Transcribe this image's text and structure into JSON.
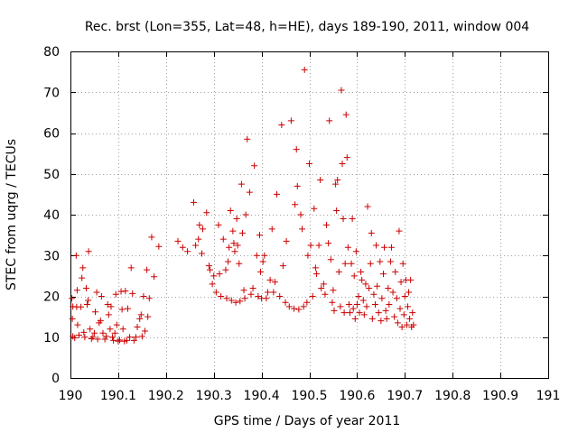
{
  "chart_data": {
    "type": "scatter",
    "title": "Rec. brst (Lon=355, Lat=48, h=HE), days 189-190, 2011, window 004",
    "xlabel": "GPS time / Days of year 2011",
    "ylabel": "STEC from uqrg / TECUs",
    "xlim": [
      190,
      191
    ],
    "ylim": [
      0,
      80
    ],
    "xticks": [
      190,
      190.1,
      190.2,
      190.3,
      190.4,
      190.5,
      190.6,
      190.7,
      190.8,
      190.9,
      191
    ],
    "xtick_labels": [
      "190",
      "190.1",
      "190.2",
      "190.3",
      "190.4",
      "190.5",
      "190.6",
      "190.7",
      "190.8",
      "190.9",
      "191"
    ],
    "yticks": [
      0,
      10,
      20,
      30,
      40,
      50,
      60,
      70,
      80
    ],
    "ytick_labels": [
      "0",
      "10",
      "20",
      "30",
      "40",
      "50",
      "60",
      "70",
      "80"
    ],
    "grid": true,
    "marker": "+",
    "color": "#cc0000",
    "series": [
      {
        "name": "STEC",
        "points": [
          [
            190.003,
            19.5
          ],
          [
            190.004,
            14.5
          ],
          [
            190.005,
            17.5
          ],
          [
            190.005,
            10.2
          ],
          [
            190.009,
            9.8
          ],
          [
            190.012,
            30.0
          ],
          [
            190.013,
            17.4
          ],
          [
            190.014,
            21.5
          ],
          [
            190.015,
            13.0
          ],
          [
            190.018,
            10.5
          ],
          [
            190.022,
            17.4
          ],
          [
            190.024,
            24.5
          ],
          [
            190.026,
            27.0
          ],
          [
            190.028,
            11.2
          ],
          [
            190.03,
            10.0
          ],
          [
            190.033,
            22.0
          ],
          [
            190.035,
            18.0
          ],
          [
            190.037,
            19.0
          ],
          [
            190.038,
            31.0
          ],
          [
            190.041,
            12.0
          ],
          [
            190.044,
            9.6
          ],
          [
            190.047,
            10.0
          ],
          [
            190.05,
            11.0
          ],
          [
            190.052,
            16.2
          ],
          [
            190.055,
            21.0
          ],
          [
            190.057,
            9.5
          ],
          [
            190.06,
            13.5
          ],
          [
            190.063,
            14.0
          ],
          [
            190.065,
            20.0
          ],
          [
            190.068,
            11.0
          ],
          [
            190.072,
            9.5
          ],
          [
            190.075,
            10.2
          ],
          [
            190.078,
            18.0
          ],
          [
            190.08,
            15.5
          ],
          [
            190.083,
            12.0
          ],
          [
            190.085,
            17.5
          ],
          [
            190.088,
            10.0
          ],
          [
            190.09,
            9.2
          ],
          [
            190.093,
            11.0
          ],
          [
            190.095,
            20.5
          ],
          [
            190.097,
            13.0
          ],
          [
            190.1,
            9.0
          ],
          [
            190.103,
            9.3
          ],
          [
            190.106,
            21.2
          ],
          [
            190.108,
            16.8
          ],
          [
            190.11,
            12.0
          ],
          [
            190.113,
            9.0
          ],
          [
            190.115,
            21.3
          ],
          [
            190.118,
            9.2
          ],
          [
            190.12,
            17.0
          ],
          [
            190.124,
            10.0
          ],
          [
            190.127,
            27.0
          ],
          [
            190.13,
            20.7
          ],
          [
            190.133,
            9.2
          ],
          [
            190.137,
            10.0
          ],
          [
            190.14,
            12.5
          ],
          [
            190.145,
            14.5
          ],
          [
            190.148,
            15.5
          ],
          [
            190.15,
            10.2
          ],
          [
            190.153,
            20.0
          ],
          [
            190.156,
            11.5
          ],
          [
            190.16,
            26.5
          ],
          [
            190.162,
            15.0
          ],
          [
            190.165,
            19.5
          ],
          [
            190.17,
            34.5
          ],
          [
            190.175,
            24.8
          ],
          [
            190.185,
            32.2
          ],
          [
            190.225,
            33.5
          ],
          [
            190.235,
            32.0
          ],
          [
            190.245,
            31.0
          ],
          [
            190.258,
            43.0
          ],
          [
            190.262,
            32.5
          ],
          [
            190.268,
            34.0
          ],
          [
            190.27,
            37.5
          ],
          [
            190.275,
            30.5
          ],
          [
            190.277,
            36.5
          ],
          [
            190.285,
            40.5
          ],
          [
            190.29,
            27.5
          ],
          [
            190.292,
            26.5
          ],
          [
            190.297,
            23.0
          ],
          [
            190.3,
            25.0
          ],
          [
            190.305,
            21.0
          ],
          [
            190.31,
            37.5
          ],
          [
            190.312,
            25.5
          ],
          [
            190.315,
            20.0
          ],
          [
            190.32,
            34.0
          ],
          [
            190.325,
            26.5
          ],
          [
            190.327,
            19.5
          ],
          [
            190.33,
            28.5
          ],
          [
            190.332,
            32.0
          ],
          [
            190.335,
            41.0
          ],
          [
            190.337,
            19.0
          ],
          [
            190.34,
            36.0
          ],
          [
            190.342,
            33.0
          ],
          [
            190.344,
            31.0
          ],
          [
            190.346,
            18.5
          ],
          [
            190.348,
            39.0
          ],
          [
            190.35,
            32.5
          ],
          [
            190.353,
            28.0
          ],
          [
            190.355,
            18.8
          ],
          [
            190.358,
            47.5
          ],
          [
            190.36,
            35.5
          ],
          [
            190.363,
            21.5
          ],
          [
            190.365,
            19.5
          ],
          [
            190.367,
            40.0
          ],
          [
            190.37,
            58.5
          ],
          [
            190.375,
            45.5
          ],
          [
            190.378,
            20.5
          ],
          [
            190.382,
            22.0
          ],
          [
            190.385,
            52.0
          ],
          [
            190.39,
            30.0
          ],
          [
            190.393,
            20.0
          ],
          [
            190.396,
            35.0
          ],
          [
            190.398,
            26.0
          ],
          [
            190.4,
            19.5
          ],
          [
            190.403,
            28.5
          ],
          [
            190.406,
            30.0
          ],
          [
            190.41,
            19.5
          ],
          [
            190.413,
            21.0
          ],
          [
            190.418,
            24.0
          ],
          [
            190.422,
            36.5
          ],
          [
            190.425,
            21.0
          ],
          [
            190.428,
            23.5
          ],
          [
            190.432,
            45.0
          ],
          [
            190.438,
            20.0
          ],
          [
            190.442,
            62.0
          ],
          [
            190.445,
            27.5
          ],
          [
            190.45,
            18.5
          ],
          [
            190.452,
            33.5
          ],
          [
            190.458,
            17.5
          ],
          [
            190.462,
            63.0
          ],
          [
            190.468,
            17.0
          ],
          [
            190.47,
            42.5
          ],
          [
            190.473,
            56.0
          ],
          [
            190.475,
            47.0
          ],
          [
            190.478,
            16.8
          ],
          [
            190.482,
            40.0
          ],
          [
            190.485,
            36.5
          ],
          [
            190.488,
            17.5
          ],
          [
            190.49,
            75.5
          ],
          [
            190.495,
            18.5
          ],
          [
            190.497,
            30.0
          ],
          [
            190.5,
            52.5
          ],
          [
            190.503,
            32.5
          ],
          [
            190.507,
            20.0
          ],
          [
            190.51,
            41.5
          ],
          [
            190.513,
            27.0
          ],
          [
            190.515,
            25.5
          ],
          [
            190.52,
            32.5
          ],
          [
            190.523,
            48.5
          ],
          [
            190.525,
            22.0
          ],
          [
            190.53,
            23.0
          ],
          [
            190.533,
            20.5
          ],
          [
            190.536,
            37.5
          ],
          [
            190.54,
            33.0
          ],
          [
            190.542,
            63.0
          ],
          [
            190.545,
            29.0
          ],
          [
            190.548,
            18.5
          ],
          [
            190.55,
            21.5
          ],
          [
            190.552,
            16.5
          ],
          [
            190.555,
            47.5
          ],
          [
            190.557,
            41.0
          ],
          [
            190.559,
            48.5
          ],
          [
            190.562,
            26.0
          ],
          [
            190.565,
            17.5
          ],
          [
            190.567,
            70.5
          ],
          [
            190.569,
            52.5
          ],
          [
            190.571,
            39.0
          ],
          [
            190.573,
            16.0
          ],
          [
            190.575,
            28.0
          ],
          [
            190.577,
            64.5
          ],
          [
            190.579,
            54.0
          ],
          [
            190.581,
            32.0
          ],
          [
            190.583,
            18.0
          ],
          [
            190.585,
            16.0
          ],
          [
            190.588,
            28.0
          ],
          [
            190.59,
            39.0
          ],
          [
            190.592,
            17.0
          ],
          [
            190.594,
            25.0
          ],
          [
            190.596,
            14.5
          ],
          [
            190.598,
            31.0
          ],
          [
            190.6,
            18.0
          ],
          [
            190.603,
            20.0
          ],
          [
            190.605,
            16.0
          ],
          [
            190.608,
            26.0
          ],
          [
            190.61,
            24.0
          ],
          [
            190.613,
            19.0
          ],
          [
            190.615,
            15.5
          ],
          [
            190.618,
            23.0
          ],
          [
            190.62,
            17.5
          ],
          [
            190.622,
            42.0
          ],
          [
            190.625,
            22.0
          ],
          [
            190.628,
            28.0
          ],
          [
            190.63,
            35.5
          ],
          [
            190.632,
            14.5
          ],
          [
            190.635,
            20.5
          ],
          [
            190.638,
            18.0
          ],
          [
            190.64,
            32.5
          ],
          [
            190.642,
            22.5
          ],
          [
            190.645,
            16.0
          ],
          [
            190.648,
            28.5
          ],
          [
            190.65,
            14.0
          ],
          [
            190.652,
            19.5
          ],
          [
            190.655,
            25.5
          ],
          [
            190.657,
            32.0
          ],
          [
            190.66,
            16.5
          ],
          [
            190.662,
            14.5
          ],
          [
            190.665,
            22.0
          ],
          [
            190.667,
            18.0
          ],
          [
            190.67,
            28.5
          ],
          [
            190.672,
            32.0
          ],
          [
            190.675,
            21.0
          ],
          [
            190.678,
            15.0
          ],
          [
            190.68,
            26.0
          ],
          [
            190.683,
            19.5
          ],
          [
            190.685,
            13.5
          ],
          [
            190.688,
            36.0
          ],
          [
            190.69,
            17.0
          ],
          [
            190.692,
            23.5
          ],
          [
            190.694,
            12.5
          ],
          [
            190.696,
            28.0
          ],
          [
            190.698,
            15.5
          ],
          [
            190.7,
            20.0
          ],
          [
            190.702,
            24.0
          ],
          [
            190.704,
            13.0
          ],
          [
            190.706,
            17.5
          ],
          [
            190.708,
            21.0
          ],
          [
            190.71,
            14.5
          ],
          [
            190.712,
            24.0
          ],
          [
            190.714,
            12.5
          ],
          [
            190.716,
            16.0
          ],
          [
            190.718,
            13.0
          ]
        ]
      }
    ]
  }
}
